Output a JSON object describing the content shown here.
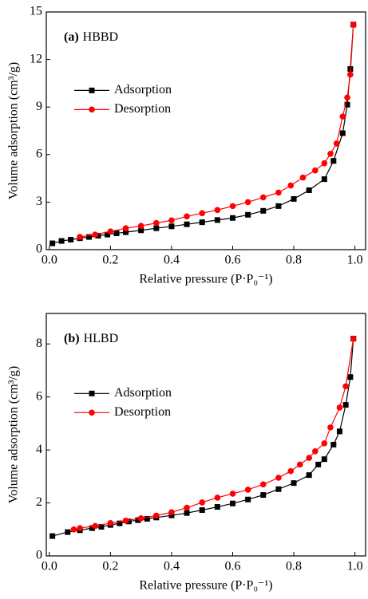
{
  "chart_data": [
    {
      "type": "line",
      "annotation": {
        "label": "(a)",
        "text": "HBBD"
      },
      "xlabel": "Relative pressure (P·P₀⁻¹)",
      "ylabel": "Volume adsorption (cm³/g)",
      "xlim": [
        -0.01,
        1.035
      ],
      "xticks": [
        {
          "value": 0,
          "label": "0.0"
        },
        0.2,
        0.4,
        0.6,
        0.8,
        {
          "value": 1,
          "label": "1.0"
        }
      ],
      "ylim": [
        0,
        15
      ],
      "yticks": [
        0,
        3,
        6,
        9,
        12,
        15
      ],
      "legend": "upper left",
      "series": [
        {
          "name": "Adsorption",
          "color": "#000000",
          "marker": "square",
          "x": [
            0.01,
            0.04,
            0.07,
            0.1,
            0.13,
            0.16,
            0.19,
            0.22,
            0.25,
            0.3,
            0.35,
            0.4,
            0.45,
            0.5,
            0.55,
            0.6,
            0.65,
            0.7,
            0.75,
            0.8,
            0.85,
            0.9,
            0.93,
            0.96,
            0.975,
            0.985,
            0.995
          ],
          "values": [
            0.4,
            0.55,
            0.63,
            0.72,
            0.8,
            0.88,
            0.95,
            1.03,
            1.1,
            1.22,
            1.35,
            1.47,
            1.6,
            1.73,
            1.87,
            2.0,
            2.2,
            2.45,
            2.75,
            3.2,
            3.75,
            4.45,
            5.6,
            7.35,
            9.15,
            11.4,
            14.2
          ]
        },
        {
          "name": "Desorption",
          "color": "#ff0000",
          "marker": "circle",
          "x": [
            0.995,
            0.985,
            0.975,
            0.96,
            0.94,
            0.92,
            0.9,
            0.87,
            0.83,
            0.79,
            0.75,
            0.7,
            0.65,
            0.6,
            0.55,
            0.5,
            0.45,
            0.4,
            0.35,
            0.3,
            0.25,
            0.2,
            0.15,
            0.1
          ],
          "values": [
            14.2,
            11.05,
            9.6,
            8.4,
            6.7,
            6.05,
            5.45,
            5.0,
            4.55,
            4.05,
            3.6,
            3.3,
            3.0,
            2.75,
            2.5,
            2.3,
            2.1,
            1.85,
            1.68,
            1.5,
            1.35,
            1.15,
            0.95,
            0.8
          ]
        }
      ]
    },
    {
      "type": "line",
      "annotation": {
        "label": "(b)",
        "text": "HLBD"
      },
      "xlabel": "Relative pressure (P·P₀⁻¹)",
      "ylabel": "Volume adsorption (cm³/g)",
      "xlim": [
        -0.01,
        1.035
      ],
      "xticks": [
        {
          "value": 0,
          "label": "0.0"
        },
        0.2,
        0.4,
        0.6,
        0.8,
        {
          "value": 1,
          "label": "1.0"
        }
      ],
      "ylim": [
        0,
        9.15
      ],
      "yticks": [
        0,
        2,
        4,
        6,
        8
      ],
      "legend": "upper left",
      "series": [
        {
          "name": "Adsorption",
          "color": "#000000",
          "marker": "square",
          "x": [
            0.01,
            0.06,
            0.1,
            0.14,
            0.17,
            0.2,
            0.23,
            0.26,
            0.29,
            0.32,
            0.35,
            0.4,
            0.45,
            0.5,
            0.55,
            0.6,
            0.65,
            0.7,
            0.75,
            0.8,
            0.85,
            0.88,
            0.9,
            0.93,
            0.95,
            0.97,
            0.985,
            0.995
          ],
          "values": [
            0.75,
            0.9,
            0.97,
            1.05,
            1.1,
            1.17,
            1.23,
            1.3,
            1.35,
            1.4,
            1.45,
            1.53,
            1.62,
            1.73,
            1.85,
            1.98,
            2.13,
            2.3,
            2.52,
            2.75,
            3.05,
            3.45,
            3.65,
            4.2,
            4.7,
            5.7,
            6.75,
            8.2
          ]
        },
        {
          "name": "Desorption",
          "color": "#ff0000",
          "marker": "circle",
          "x": [
            0.995,
            0.97,
            0.95,
            0.92,
            0.9,
            0.87,
            0.85,
            0.82,
            0.79,
            0.75,
            0.7,
            0.65,
            0.6,
            0.55,
            0.5,
            0.45,
            0.4,
            0.35,
            0.3,
            0.25,
            0.2,
            0.15,
            0.1,
            0.08
          ],
          "values": [
            8.2,
            6.4,
            5.6,
            4.85,
            4.25,
            3.95,
            3.7,
            3.45,
            3.2,
            2.95,
            2.7,
            2.5,
            2.35,
            2.2,
            2.02,
            1.82,
            1.65,
            1.52,
            1.42,
            1.33,
            1.24,
            1.13,
            1.05,
            1.0
          ]
        }
      ]
    }
  ]
}
